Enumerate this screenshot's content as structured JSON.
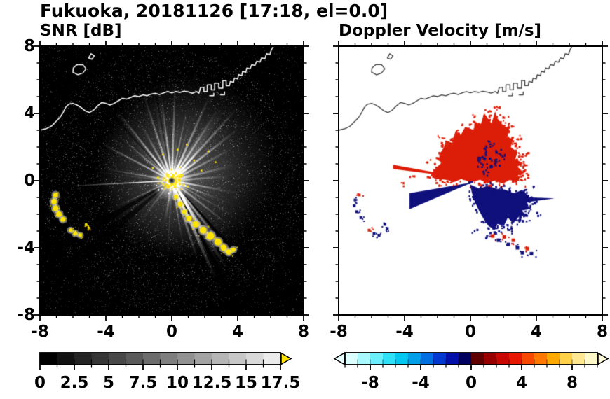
{
  "header": {
    "title": "Fukuoka, 20181126 [17:18, el=0.0]"
  },
  "panels": {
    "snr": {
      "title": "SNR [dB]"
    },
    "doppler": {
      "title": "Doppler Velocity [m/s]"
    }
  },
  "axes": {
    "y_tick_labels": [
      "8",
      "4",
      "0",
      "-4",
      "-8"
    ],
    "x_tick_labels": [
      "-8",
      "-4",
      "0",
      "4",
      "8"
    ]
  },
  "colorbar_snr": {
    "tick_labels": [
      "0",
      "2.5",
      "5",
      "7.5",
      "10",
      "12.5",
      "15",
      "17.5"
    ],
    "start_color": "#000000",
    "end_color": "#e2e2e2",
    "over_arrow_color": "#ffe400"
  },
  "colorbar_doppler": {
    "tick_labels": [
      "-8",
      "-4",
      "0",
      "4",
      "8"
    ],
    "segment_colors": [
      "#dcffff",
      "#a8f8ff",
      "#6ceefc",
      "#2ee0f8",
      "#00c8f0",
      "#00a0e8",
      "#0070e0",
      "#0038d0",
      "#0010a8",
      "#000060",
      "#600000",
      "#980000",
      "#c80800",
      "#e81800",
      "#f84800",
      "#ff7800",
      "#ffa800",
      "#ffd048",
      "#ffe890",
      "#fff8c8"
    ],
    "under_arrow_color": "#eaffff",
    "over_arrow_color": "#fffbda"
  },
  "colors": {
    "snr_background": "#000000",
    "clutter_yellow": "#ffe400",
    "doppler_red": "#dc1e08",
    "doppler_navy": "#10107c",
    "coast_snr": "#ffffff",
    "coast_doppler": "#3a3a3a",
    "frame": "#000000"
  },
  "chart_data": [
    {
      "type": "heatmap",
      "panel": "snr",
      "title": "SNR [dB]",
      "xlim": [
        -8,
        8
      ],
      "ylim": [
        -8,
        8
      ],
      "x_ticks": [
        -8,
        -4,
        0,
        4,
        8
      ],
      "y_ticks": [
        -8,
        -4,
        0,
        4,
        8
      ],
      "minor_tick_step": 1,
      "colorbar": {
        "range": [
          0,
          17.5
        ],
        "ticks": [
          0,
          2.5,
          5,
          7.5,
          10,
          12.5,
          15,
          17.5
        ],
        "minor_step": 1.25,
        "colormap": "grayscale black to white, over-range arrow yellow"
      },
      "content": "Radar PPI of SNR: dark speckle-noise background, bright white radial beams from radar at origin, diffuse strong echo NE/E of origin, yellow ground clutter at origin, along an arc from (0.2,-0.9) to (3.7,-4.2), and small arcs near (-7,-1.5), (-6,-3.1), (-5.1,-2.7); white coastline across the top of the domain"
    },
    {
      "type": "heatmap",
      "panel": "doppler",
      "title": "Doppler Velocity [m/s]",
      "xlim": [
        -8,
        8
      ],
      "ylim": [
        -8,
        8
      ],
      "x_ticks": [
        -8,
        -4,
        0,
        4,
        8
      ],
      "y_ticks": [
        -8,
        -4,
        0,
        4,
        8
      ],
      "minor_tick_step": 1,
      "colorbar": {
        "range": [
          -10,
          10
        ],
        "ticks": [
          -8,
          -4,
          0,
          4,
          8
        ],
        "minor_step": 1,
        "colormap": "pale cyan - cyan - blue - dark navy | dark red - red - orange - pale yellow"
      },
      "content": "Doppler velocity field: red (receding, ~+2..+4 m/s) echoes N-NE of the radar; dark navy (approaching, ~-1..-2 m/s) echoes SE of the radar; solid navy wedge from origin to (-3.7,-1.2); thin red ray to (-4.7,0.9); navy spike to (5.1,-1.1); small red/navy clutter arcs at lower-left and along the bottom matching the SNR clutter; coastline drawn in black"
    }
  ],
  "geometry": {
    "coastline_xy": [
      [
        -8.0,
        3.0
      ],
      [
        -7.6,
        3.1
      ],
      [
        -7.3,
        3.25
      ],
      [
        -7.05,
        3.5
      ],
      [
        -6.8,
        3.75
      ],
      [
        -6.6,
        4.05
      ],
      [
        -6.45,
        4.35
      ],
      [
        -6.25,
        4.55
      ],
      [
        -6.0,
        4.6
      ],
      [
        -5.75,
        4.5
      ],
      [
        -5.5,
        4.35
      ],
      [
        -5.25,
        4.15
      ],
      [
        -5.0,
        4.05
      ],
      [
        -4.75,
        4.2
      ],
      [
        -4.5,
        4.45
      ],
      [
        -4.25,
        4.65
      ],
      [
        -4.0,
        4.6
      ],
      [
        -3.75,
        4.5
      ],
      [
        -3.5,
        4.6
      ],
      [
        -3.25,
        4.75
      ],
      [
        -3.0,
        4.9
      ],
      [
        -2.75,
        4.85
      ],
      [
        -2.5,
        4.95
      ],
      [
        -2.25,
        5.05
      ],
      [
        -2.0,
        5.0
      ],
      [
        -1.75,
        5.1
      ],
      [
        -1.5,
        5.05
      ],
      [
        -1.25,
        5.15
      ],
      [
        -1.0,
        5.2
      ],
      [
        -0.75,
        5.12
      ],
      [
        -0.5,
        5.22
      ],
      [
        -0.25,
        5.3
      ],
      [
        0.0,
        5.22
      ],
      [
        0.25,
        5.3
      ],
      [
        0.5,
        5.25
      ],
      [
        0.75,
        5.32
      ],
      [
        1.0,
        5.28
      ],
      [
        1.25,
        5.2
      ],
      [
        1.5,
        5.3
      ],
      [
        1.65,
        5.2
      ],
      [
        1.75,
        5.55
      ],
      [
        1.95,
        5.55
      ],
      [
        1.95,
        5.3
      ],
      [
        2.15,
        5.3
      ],
      [
        2.15,
        5.7
      ],
      [
        2.4,
        5.7
      ],
      [
        2.4,
        5.4
      ],
      [
        2.6,
        5.4
      ],
      [
        2.6,
        5.8
      ],
      [
        2.85,
        5.8
      ],
      [
        2.85,
        5.5
      ],
      [
        3.1,
        5.5
      ],
      [
        3.1,
        5.95
      ],
      [
        3.3,
        5.95
      ],
      [
        3.3,
        5.65
      ],
      [
        3.5,
        5.65
      ],
      [
        3.55,
        5.9
      ],
      [
        3.75,
        5.85
      ],
      [
        3.8,
        6.1
      ],
      [
        4.0,
        6.05
      ],
      [
        4.05,
        6.3
      ],
      [
        4.25,
        6.25
      ],
      [
        4.3,
        6.5
      ],
      [
        4.5,
        6.45
      ],
      [
        4.55,
        6.7
      ],
      [
        4.75,
        6.65
      ],
      [
        4.85,
        6.9
      ],
      [
        5.05,
        6.85
      ],
      [
        5.15,
        7.1
      ],
      [
        5.35,
        7.05
      ],
      [
        5.45,
        7.3
      ],
      [
        5.65,
        7.25
      ],
      [
        5.75,
        7.55
      ],
      [
        5.95,
        7.5
      ],
      [
        6.05,
        7.8
      ],
      [
        6.2,
        8.05
      ]
    ],
    "island1_xy": [
      [
        -6.0,
        6.45
      ],
      [
        -5.7,
        6.3
      ],
      [
        -5.4,
        6.4
      ],
      [
        -5.2,
        6.65
      ],
      [
        -5.4,
        6.9
      ],
      [
        -5.75,
        6.9
      ],
      [
        -5.98,
        6.7
      ]
    ],
    "island2_xy": [
      [
        -5.05,
        7.3
      ],
      [
        -4.85,
        7.22
      ],
      [
        -4.7,
        7.42
      ],
      [
        -4.9,
        7.55
      ]
    ],
    "breakwater1_xy": [
      [
        2.3,
        5.05
      ],
      [
        2.55,
        5.05
      ],
      [
        2.55,
        5.2
      ]
    ],
    "breakwater2_xy": [
      [
        2.95,
        5.1
      ],
      [
        3.2,
        5.1
      ],
      [
        3.2,
        5.28
      ]
    ],
    "red_region_xy": [
      [
        -2.4,
        0.2
      ],
      [
        -2.1,
        0.8
      ],
      [
        -1.7,
        1.1
      ],
      [
        -2.0,
        1.6
      ],
      [
        -1.5,
        1.9
      ],
      [
        -1.6,
        2.4
      ],
      [
        -1.1,
        2.3
      ],
      [
        -0.9,
        2.8
      ],
      [
        -0.5,
        2.6
      ],
      [
        -0.3,
        3.2
      ],
      [
        0.1,
        2.9
      ],
      [
        0.3,
        3.5
      ],
      [
        0.7,
        3.2
      ],
      [
        0.9,
        3.9
      ],
      [
        1.2,
        3.4
      ],
      [
        1.5,
        4.15
      ],
      [
        1.7,
        3.6
      ],
      [
        2.0,
        3.2
      ],
      [
        2.3,
        3.1
      ],
      [
        2.2,
        2.6
      ],
      [
        2.6,
        2.4
      ],
      [
        2.5,
        2.0
      ],
      [
        3.0,
        1.8
      ],
      [
        2.8,
        1.4
      ],
      [
        3.2,
        1.1
      ],
      [
        2.9,
        0.8
      ],
      [
        3.3,
        0.5
      ],
      [
        2.8,
        0.3
      ],
      [
        3.0,
        0.0
      ],
      [
        2.4,
        0.1
      ],
      [
        2.0,
        -0.2
      ],
      [
        1.5,
        0.0
      ],
      [
        1.0,
        -0.15
      ],
      [
        0.5,
        0.05
      ],
      [
        0.0,
        -0.1
      ],
      [
        -0.5,
        0.1
      ],
      [
        -1.0,
        -0.05
      ],
      [
        -1.5,
        0.05
      ],
      [
        -2.0,
        0.0
      ]
    ],
    "blue_region_xy": [
      [
        0.1,
        -0.25
      ],
      [
        0.6,
        -0.5
      ],
      [
        1.1,
        -0.35
      ],
      [
        1.6,
        -0.6
      ],
      [
        2.1,
        -0.45
      ],
      [
        2.6,
        -0.75
      ],
      [
        3.1,
        -0.6
      ],
      [
        3.5,
        -0.95
      ],
      [
        3.3,
        -1.3
      ],
      [
        3.7,
        -1.6
      ],
      [
        3.2,
        -1.9
      ],
      [
        3.4,
        -2.2
      ],
      [
        2.9,
        -2.1
      ],
      [
        2.7,
        -2.5
      ],
      [
        2.3,
        -2.3
      ],
      [
        2.1,
        -2.8
      ],
      [
        1.7,
        -2.5
      ],
      [
        1.4,
        -3.0
      ],
      [
        1.1,
        -2.6
      ],
      [
        0.8,
        -2.2
      ],
      [
        0.5,
        -1.8
      ],
      [
        0.3,
        -1.3
      ],
      [
        0.15,
        -0.8
      ]
    ],
    "navy_wedge_xy": [
      [
        0.1,
        -0.1
      ],
      [
        -3.7,
        -0.75
      ],
      [
        -3.7,
        -1.7
      ]
    ],
    "navy_spike_xy": [
      [
        2.2,
        -0.95
      ],
      [
        5.1,
        -1.05
      ],
      [
        2.2,
        -1.45
      ]
    ],
    "red_ray_xy": [
      [
        0.0,
        0.1
      ],
      [
        -4.7,
        0.95
      ],
      [
        -4.7,
        0.7
      ]
    ],
    "navy_inner_xy": [
      [
        0.5,
        0.9
      ],
      [
        0.8,
        1.2
      ],
      [
        1.1,
        0.8
      ],
      [
        0.7,
        1.6
      ],
      [
        1.3,
        1.3
      ],
      [
        0.4,
        1.3
      ],
      [
        1.0,
        1.9
      ],
      [
        1.5,
        1.0
      ],
      [
        1.6,
        1.7
      ],
      [
        0.9,
        0.5
      ],
      [
        1.9,
        1.4
      ],
      [
        1.2,
        2.2
      ]
    ],
    "red_outliers": [
      [
        0.2,
        3.8
      ],
      [
        1.0,
        4.3
      ],
      [
        -0.9,
        3.0
      ],
      [
        2.1,
        3.9
      ],
      [
        -1.9,
        2.6
      ],
      [
        -2.6,
        1.2
      ],
      [
        2.9,
        2.6
      ],
      [
        3.3,
        1.6
      ],
      [
        -3.6,
        0.2
      ],
      [
        -4.1,
        -0.2
      ]
    ],
    "blue_outliers": [
      [
        3.9,
        -1.2
      ],
      [
        4.1,
        -2.0
      ],
      [
        2.6,
        -3.0
      ],
      [
        0.2,
        -2.9
      ],
      [
        3.8,
        -0.4
      ],
      [
        1.0,
        -3.3
      ]
    ],
    "chain_snr": [
      [
        0.25,
        -0.95,
        3
      ],
      [
        0.5,
        -1.4,
        3.5
      ],
      [
        0.75,
        -1.85,
        3
      ],
      [
        1.05,
        -2.25,
        4
      ],
      [
        1.45,
        -2.6,
        4.5
      ],
      [
        1.9,
        -2.95,
        5
      ],
      [
        2.35,
        -3.3,
        5.5
      ],
      [
        2.8,
        -3.65,
        5
      ],
      [
        3.15,
        -4.0,
        4.5
      ],
      [
        3.45,
        -4.25,
        4
      ],
      [
        3.75,
        -4.1,
        3
      ]
    ],
    "chain_doppler": [
      [
        1.35,
        -3.3,
        "r"
      ],
      [
        1.7,
        -3.55,
        "n"
      ],
      [
        2.05,
        -3.35,
        "r"
      ],
      [
        2.3,
        -3.8,
        "n"
      ],
      [
        2.6,
        -3.55,
        "r"
      ],
      [
        2.85,
        -4.0,
        "n"
      ],
      [
        3.15,
        -4.3,
        "n"
      ],
      [
        3.45,
        -4.05,
        "r"
      ],
      [
        3.7,
        -4.35,
        "n"
      ]
    ],
    "left_arc1": [
      [
        -7.05,
        -0.85,
        3.5
      ],
      [
        -7.15,
        -1.25,
        4
      ],
      [
        -7.05,
        -1.65,
        4
      ],
      [
        -6.85,
        -2.0,
        4
      ],
      [
        -6.6,
        -2.3,
        3.5
      ]
    ],
    "left_arc2": [
      [
        -6.15,
        -2.95,
        2.5
      ],
      [
        -5.85,
        -3.15,
        3
      ],
      [
        -5.55,
        -3.25,
        2.5
      ]
    ],
    "left_arc3": [
      [
        -5.2,
        -2.6,
        2
      ],
      [
        -5.05,
        -2.8,
        1.8
      ]
    ],
    "left_doppler": [
      [
        -6.75,
        -0.85,
        "r"
      ],
      [
        -7.0,
        -1.15,
        "n"
      ],
      [
        -7.05,
        -1.5,
        "n"
      ],
      [
        -6.9,
        -1.85,
        "n"
      ],
      [
        -6.65,
        -2.2,
        "n"
      ],
      [
        -6.15,
        -2.95,
        "r"
      ],
      [
        -5.85,
        -3.15,
        "n"
      ],
      [
        -5.55,
        -3.25,
        "n"
      ],
      [
        -5.2,
        -2.6,
        "n"
      ],
      [
        -5.05,
        -2.85,
        "n"
      ]
    ],
    "scatter_yellow": [
      [
        1.3,
        1.25
      ],
      [
        2.15,
        1.8
      ],
      [
        0.85,
        2.2
      ],
      [
        -0.6,
        1.6
      ],
      [
        1.75,
        0.65
      ],
      [
        2.6,
        1.15
      ],
      [
        -1.2,
        0.8
      ],
      [
        0.3,
        1.9
      ]
    ]
  }
}
